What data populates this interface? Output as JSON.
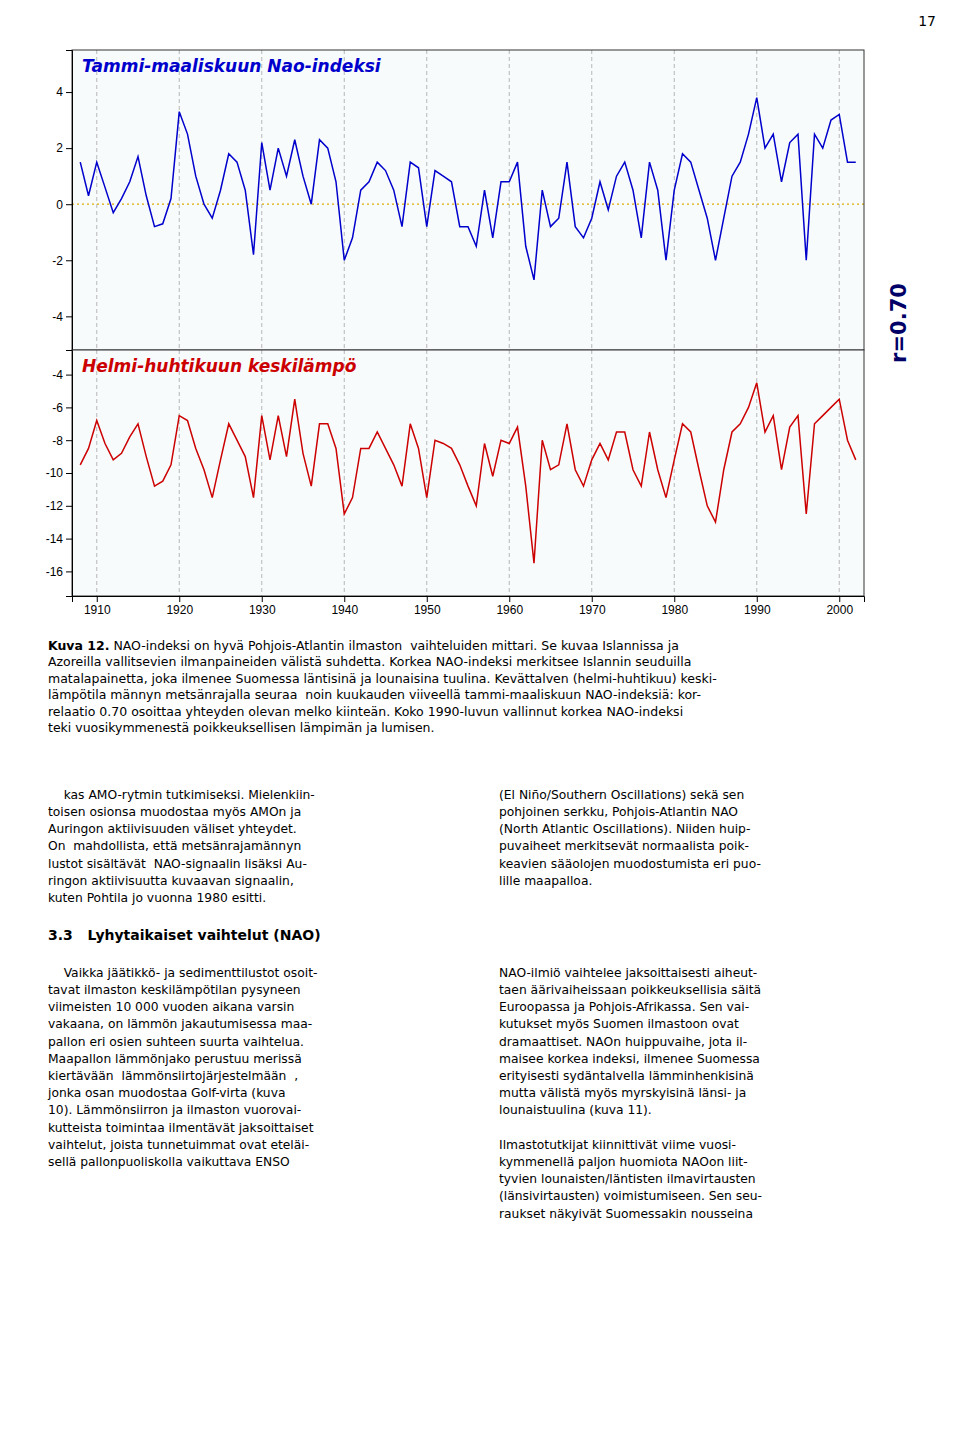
{
  "page_number": "17",
  "chart_data": [
    {
      "type": "line",
      "title": "Tammi-maaliskuun Nao-indeksi",
      "color": "#0000cc",
      "x": [
        1908,
        1909,
        1910,
        1911,
        1912,
        1913,
        1914,
        1915,
        1916,
        1917,
        1918,
        1919,
        1920,
        1921,
        1922,
        1923,
        1924,
        1925,
        1926,
        1927,
        1928,
        1929,
        1930,
        1931,
        1932,
        1933,
        1934,
        1935,
        1936,
        1937,
        1938,
        1939,
        1940,
        1941,
        1942,
        1943,
        1944,
        1945,
        1946,
        1947,
        1948,
        1949,
        1950,
        1951,
        1952,
        1953,
        1954,
        1955,
        1956,
        1957,
        1958,
        1959,
        1960,
        1961,
        1962,
        1963,
        1964,
        1965,
        1966,
        1967,
        1968,
        1969,
        1970,
        1971,
        1972,
        1973,
        1974,
        1975,
        1976,
        1977,
        1978,
        1979,
        1980,
        1981,
        1982,
        1983,
        1984,
        1985,
        1986,
        1987,
        1988,
        1989,
        1990,
        1991,
        1992,
        1993,
        1994,
        1995,
        1996,
        1997,
        1998,
        1999,
        2000,
        2001,
        2002
      ],
      "values": [
        1.5,
        0.3,
        1.5,
        0.6,
        -0.3,
        0.2,
        0.8,
        1.7,
        0.3,
        -0.8,
        -0.7,
        0.2,
        3.3,
        2.5,
        1.0,
        0.0,
        -0.5,
        0.5,
        1.8,
        1.5,
        0.5,
        -1.8,
        2.2,
        0.5,
        2.0,
        1.0,
        2.3,
        1.0,
        0.0,
        2.3,
        2.0,
        0.8,
        -2.0,
        -1.2,
        0.5,
        0.8,
        1.5,
        1.2,
        0.5,
        -0.8,
        1.5,
        1.3,
        -0.8,
        1.2,
        1.0,
        0.8,
        -0.8,
        -0.8,
        -1.5,
        0.5,
        -1.2,
        0.8,
        0.8,
        1.5,
        -1.5,
        -2.7,
        0.5,
        -0.8,
        -0.5,
        1.5,
        -0.8,
        -1.2,
        -0.5,
        0.8,
        -0.2,
        1.0,
        1.5,
        0.5,
        -1.2,
        1.5,
        0.5,
        -2.0,
        0.5,
        1.8,
        1.5,
        0.5,
        -0.5,
        -2.0,
        -0.5,
        1.0,
        1.5,
        2.5,
        3.8,
        2.0,
        2.5,
        0.8,
        2.2,
        2.5,
        -2.0,
        2.5,
        2.0,
        3.0,
        3.2,
        1.5,
        1.5
      ],
      "xlim": [
        1907,
        2003
      ],
      "xticks": [
        1910,
        1920,
        1930,
        1940,
        1950,
        1960,
        1970,
        1980,
        1990,
        2000
      ],
      "ylim": [
        -5.2,
        5.5
      ],
      "yticks": [
        -4,
        -2,
        0,
        2,
        4
      ],
      "grid": "x",
      "tick_labels": "y",
      "zero_line": {
        "y": 0,
        "color": "#ddaa00"
      }
    },
    {
      "type": "line",
      "title": "Helmi-huhtikuun keskilämpö",
      "color": "#cc0000",
      "x": [
        1908,
        1909,
        1910,
        1911,
        1912,
        1913,
        1914,
        1915,
        1916,
        1917,
        1918,
        1919,
        1920,
        1921,
        1922,
        1923,
        1924,
        1925,
        1926,
        1927,
        1928,
        1929,
        1930,
        1931,
        1932,
        1933,
        1934,
        1935,
        1936,
        1937,
        1938,
        1939,
        1940,
        1941,
        1942,
        1943,
        1944,
        1945,
        1946,
        1947,
        1948,
        1949,
        1950,
        1951,
        1952,
        1953,
        1954,
        1955,
        1956,
        1957,
        1958,
        1959,
        1960,
        1961,
        1962,
        1963,
        1964,
        1965,
        1966,
        1967,
        1968,
        1969,
        1970,
        1971,
        1972,
        1973,
        1974,
        1975,
        1976,
        1977,
        1978,
        1979,
        1980,
        1981,
        1982,
        1983,
        1984,
        1985,
        1986,
        1987,
        1988,
        1989,
        1990,
        1991,
        1992,
        1993,
        1994,
        1995,
        1996,
        1997,
        1998,
        1999,
        2000,
        2001,
        2002
      ],
      "values": [
        -9.5,
        -8.5,
        -6.8,
        -8.2,
        -9.2,
        -8.8,
        -7.8,
        -7.0,
        -9.0,
        -10.8,
        -10.5,
        -9.5,
        -6.5,
        -6.8,
        -8.5,
        -9.8,
        -11.5,
        -9.2,
        -7.0,
        -8.0,
        -9.0,
        -11.5,
        -6.5,
        -9.2,
        -6.5,
        -9.0,
        -5.5,
        -8.8,
        -10.8,
        -7.0,
        -7.0,
        -8.5,
        -12.5,
        -11.5,
        -8.5,
        -8.5,
        -7.5,
        -8.5,
        -9.5,
        -10.8,
        -7.0,
        -8.5,
        -11.5,
        -8.0,
        -8.2,
        -8.5,
        -9.5,
        -10.8,
        -12.0,
        -8.2,
        -10.2,
        -8.0,
        -8.2,
        -7.2,
        -10.8,
        -15.5,
        -8.0,
        -9.8,
        -9.5,
        -7.0,
        -9.8,
        -10.8,
        -9.2,
        -8.2,
        -9.2,
        -7.5,
        -7.5,
        -9.8,
        -10.8,
        -7.5,
        -9.8,
        -11.5,
        -9.2,
        -7.0,
        -7.5,
        -9.8,
        -12.0,
        -13.0,
        -9.8,
        -7.5,
        -7.0,
        -6.0,
        -4.5,
        -7.5,
        -6.5,
        -9.8,
        -7.2,
        -6.5,
        -12.5,
        -7.0,
        -6.5,
        -6.0,
        -5.5,
        -8.0,
        -9.2
      ],
      "xlim": [
        1907,
        2003
      ],
      "xticks": [
        1910,
        1920,
        1930,
        1940,
        1950,
        1960,
        1970,
        1980,
        1990,
        2000
      ],
      "ylim": [
        -17.5,
        -2.5
      ],
      "yticks": [
        -16,
        -14,
        -12,
        -10,
        -8,
        -6,
        -4
      ],
      "grid": "x"
    }
  ],
  "correlation_label": "r=0.70",
  "caption": {
    "bold": "Kuva 12.",
    "lines": [
      " NAO-indeksi on hyvä Pohjois-Atlantin ilmaston  vaihteluiden mittari. Se kuvaa Islannissa ja",
      "Azoreilla vallitsevien ilmanpaineiden välistä suhdetta. Korkea NAO-indeksi merkitsee Islannin seuduilla",
      "matalapainetta, joka ilmenee Suomessa läntisinä ja lounaisina tuulina. Kevättalven (helmi-huhtikuu) keski-",
      "lämpötila männyn metsänrajalla seuraa  noin kuukauden viiveellä tammi-maaliskuun NAO-indeksiä: kor-",
      "relaatio 0.70 osoittaa yhteyden olevan melko kiinteän. Koko 1990-luvun vallinnut korkea NAO-indeksi",
      "teki vuosikymmenestä poikkeuksellisen lämpimän ja lumisen."
    ]
  },
  "section_heading": "3.3   Lyhytaikaiset vaihtelut (NAO)",
  "text_blocks": [
    {
      "lines": [
        "    kas AMO-rytmin tutkimiseksi. Mielenkiin-",
        "toisen osionsa muodostaa myös AMOn ja",
        "Auringon aktiivisuuden väliset yhteydet.",
        "On  mahdollista, että metsänrajamännyn",
        "lustot sisältävät  NAO-signaalin lisäksi Au-",
        "ringon aktiivisuutta kuvaavan signaalin,",
        "kuten Pohtila jo vuonna 1980 esitti."
      ]
    },
    {
      "lines": [
        "(El Niño/Southern Oscillations) sekä sen",
        "pohjoinen serkku, Pohjois-Atlantin NAO",
        "(North Atlantic Oscillations). Niiden huip-",
        "puvaiheet merkitsevät normaalista poik-",
        "keavien sääolojen muodostumista eri puo-",
        "lille maapalloa."
      ]
    },
    {
      "lines": [
        "    Vaikka jäätikkö- ja sedimenttilustot osoit-",
        "tavat ilmaston keskilämpötilan pysyneen",
        "viimeisten 10 000 vuoden aikana varsin",
        "vakaana, on lämmön jakautumisessa maa-",
        "pallon eri osien suhteen suurta vaihtelua.",
        "Maapallon lämmönjako perustuu merissä",
        "kiertävään  lämmönsiirtojärjestelmään  ,",
        "jonka osan muodostaa Golf-virta (kuva",
        "10). Lämmönsiirron ja ilmaston vuorovai-",
        "kutteista toimintaa ilmentävät jaksoittaiset",
        "vaihtelut, joista tunnetuimmat ovat eteläi-",
        "sellä pallonpuoliskolla vaikuttava ENSO"
      ]
    },
    {
      "lines": [
        "NAO-ilmiö vaihtelee jaksoittaisesti aiheut-",
        "taen äärivaiheissaan poikkeuksellisia säitä",
        "Euroopassa ja Pohjois-Afrikassa. Sen vai-",
        "kutukset myös Suomen ilmastoon ovat",
        "dramaattiset. NAOn huippuvaihe, jota il-",
        "maisee korkea indeksi, ilmenee Suomessa",
        "erityisesti sydäntalvella lämminhenkisinä",
        "mutta välistä myös myrskyisinä länsi- ja",
        "lounaistuulina (kuva 11)."
      ]
    },
    {
      "lines": [
        "Ilmastotutkijat kiinnittivät viime vuosi-",
        "kymmenellä paljon huomiota NAOon liit-",
        "tyvien lounaisten/läntisten ilmavirtausten",
        "(länsivirtausten) voimistumiseen. Sen seu-",
        "raukset näkyivät Suomessakin nousseina"
      ]
    }
  ]
}
